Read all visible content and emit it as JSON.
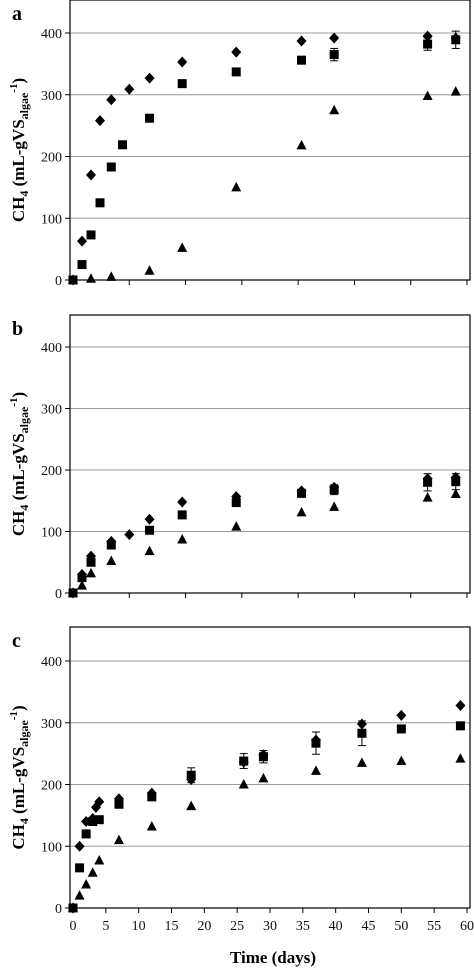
{
  "figure": {
    "x_axis_title": "Time (days)",
    "y_axis_title": {
      "main": "CH",
      "sub4": "4",
      "unit_a": " (mL-gVS",
      "sub_algae": "algae",
      "sup": "-1",
      "close": ")"
    }
  },
  "colors": {
    "marker": "#000000",
    "grid": "#999999",
    "frame": "#000000"
  },
  "chart_data": [
    {
      "type": "scatter",
      "panel_label": "a",
      "xlim": [
        0,
        35
      ],
      "ylim": [
        0,
        400
      ],
      "yticks": [
        0,
        100,
        200,
        300,
        400
      ],
      "xticks": [],
      "grid": "horizontal",
      "series": [
        {
          "marker": "diamond",
          "points": [
            [
              0,
              0
            ],
            [
              0.8,
              63
            ],
            [
              1.6,
              170
            ],
            [
              2.4,
              258
            ],
            [
              3.4,
              292
            ],
            [
              5,
              309
            ],
            [
              6.8,
              327
            ],
            [
              9.7,
              353
            ],
            [
              14.5,
              369
            ],
            [
              20.3,
              387
            ],
            [
              23.2,
              392
            ],
            [
              31.5,
              395
            ],
            [
              34,
              392
            ]
          ]
        },
        {
          "marker": "square",
          "points": [
            [
              0,
              0
            ],
            [
              0.8,
              25
            ],
            [
              1.6,
              73
            ],
            [
              2.4,
              125
            ],
            [
              3.4,
              183
            ],
            [
              4.4,
              219
            ],
            [
              6.8,
              262
            ],
            [
              9.7,
              318
            ],
            [
              14.5,
              337
            ],
            [
              20.3,
              356
            ],
            [
              23.2,
              365
            ],
            [
              31.5,
              382
            ],
            [
              34,
              389
            ]
          ],
          "error": [
            [
              31.5,
              10
            ],
            [
              34,
              14
            ],
            [
              23.2,
              10
            ]
          ]
        },
        {
          "marker": "triangle",
          "points": [
            [
              0,
              0
            ],
            [
              1.6,
              2
            ],
            [
              3.4,
              5
            ],
            [
              6.8,
              15
            ],
            [
              9.7,
              52
            ],
            [
              14.5,
              150
            ],
            [
              20.3,
              218
            ],
            [
              23.2,
              275
            ],
            [
              31.5,
              298
            ],
            [
              34,
              305
            ]
          ]
        }
      ]
    },
    {
      "type": "scatter",
      "panel_label": "b",
      "xlim": [
        0,
        35
      ],
      "ylim": [
        0,
        400
      ],
      "yticks": [
        0,
        100,
        200,
        300,
        400
      ],
      "xticks": [],
      "grid": "horizontal",
      "series": [
        {
          "marker": "diamond",
          "points": [
            [
              0,
              0
            ],
            [
              0.8,
              30
            ],
            [
              1.6,
              60
            ],
            [
              3.4,
              84
            ],
            [
              5,
              95
            ],
            [
              6.8,
              120
            ],
            [
              9.7,
              148
            ],
            [
              14.5,
              157
            ],
            [
              20.3,
              166
            ],
            [
              23.2,
              172
            ],
            [
              31.5,
              186
            ],
            [
              34,
              188
            ]
          ]
        },
        {
          "marker": "square",
          "points": [
            [
              0,
              0
            ],
            [
              0.8,
              25
            ],
            [
              1.6,
              50
            ],
            [
              3.4,
              78
            ],
            [
              6.8,
              102
            ],
            [
              9.7,
              127
            ],
            [
              14.5,
              147
            ],
            [
              20.3,
              162
            ],
            [
              23.2,
              168
            ],
            [
              31.5,
              180
            ],
            [
              34,
              181
            ]
          ],
          "error": [
            [
              31.5,
              14
            ],
            [
              34,
              13
            ],
            [
              23.2,
              8
            ]
          ]
        },
        {
          "marker": "triangle",
          "points": [
            [
              0,
              0
            ],
            [
              0.8,
              12
            ],
            [
              1.6,
              32
            ],
            [
              3.4,
              52
            ],
            [
              6.8,
              68
            ],
            [
              9.7,
              87
            ],
            [
              14.5,
              108
            ],
            [
              20.3,
              131
            ],
            [
              23.2,
              140
            ],
            [
              31.5,
              155
            ],
            [
              34,
              161
            ]
          ]
        }
      ]
    },
    {
      "type": "scatter",
      "panel_label": "c",
      "xlim": [
        0,
        60
      ],
      "ylim": [
        0,
        400
      ],
      "yticks": [
        0,
        100,
        200,
        300,
        400
      ],
      "xticks": [
        0,
        5,
        10,
        15,
        20,
        25,
        30,
        35,
        40,
        45,
        50,
        55,
        60
      ],
      "grid": "horizontal",
      "series": [
        {
          "marker": "diamond",
          "points": [
            [
              0,
              0
            ],
            [
              1,
              100
            ],
            [
              2,
              140
            ],
            [
              3,
              145
            ],
            [
              3.5,
              163
            ],
            [
              4,
              172
            ],
            [
              7,
              177
            ],
            [
              12,
              186
            ],
            [
              18,
              208
            ],
            [
              26,
              236
            ],
            [
              29,
              248
            ],
            [
              37,
              272
            ],
            [
              44,
              298
            ],
            [
              50,
              312
            ],
            [
              59,
              328
            ]
          ]
        },
        {
          "marker": "square",
          "points": [
            [
              0,
              0
            ],
            [
              1,
              65
            ],
            [
              2,
              120
            ],
            [
              3,
              140
            ],
            [
              4,
              143
            ],
            [
              7,
              168
            ],
            [
              12,
              180
            ],
            [
              18,
              215
            ],
            [
              26,
              238
            ],
            [
              29,
              245
            ],
            [
              37,
              267
            ],
            [
              44,
              283
            ],
            [
              50,
              290
            ],
            [
              59,
              295
            ]
          ],
          "error": [
            [
              18,
              12
            ],
            [
              26,
              12
            ],
            [
              29,
              10
            ],
            [
              37,
              18
            ],
            [
              44,
              20
            ]
          ]
        },
        {
          "marker": "triangle",
          "points": [
            [
              0,
              0
            ],
            [
              1,
              20
            ],
            [
              2,
              38
            ],
            [
              3,
              57
            ],
            [
              4,
              77
            ],
            [
              7,
              110
            ],
            [
              12,
              132
            ],
            [
              18,
              165
            ],
            [
              26,
              200
            ],
            [
              29,
              210
            ],
            [
              37,
              222
            ],
            [
              44,
              235
            ],
            [
              50,
              238
            ],
            [
              59,
              242
            ]
          ]
        }
      ]
    }
  ]
}
